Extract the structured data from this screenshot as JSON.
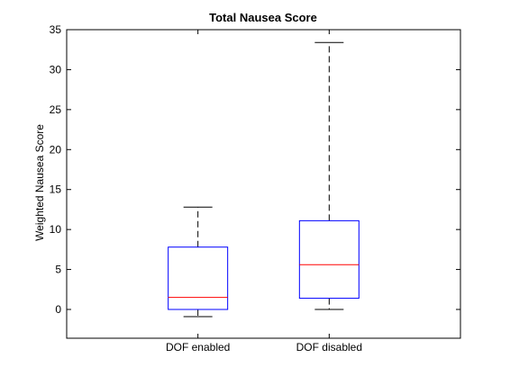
{
  "chart_data": {
    "type": "box",
    "title": "Total Nausea Score",
    "xlabel": "",
    "ylabel": "Weighted Nausea Score",
    "ylim": [
      -3.6,
      35
    ],
    "yticks": [
      0,
      5,
      10,
      15,
      20,
      25,
      30,
      35
    ],
    "grid": false,
    "categories": [
      "DOF enabled",
      "DOF disabled"
    ],
    "boxes": [
      {
        "category": "DOF enabled",
        "whisker_low": -0.9,
        "q1": 0,
        "median": 1.5,
        "q3": 7.8,
        "whisker_high": 12.8
      },
      {
        "category": "DOF disabled",
        "whisker_low": 0,
        "q1": 1.4,
        "median": 5.6,
        "q3": 11.1,
        "whisker_high": 33.4
      }
    ],
    "colors": {
      "box": "#0000ff",
      "median": "#ff0000",
      "whisker": "#000000",
      "axes": "#000000"
    }
  }
}
